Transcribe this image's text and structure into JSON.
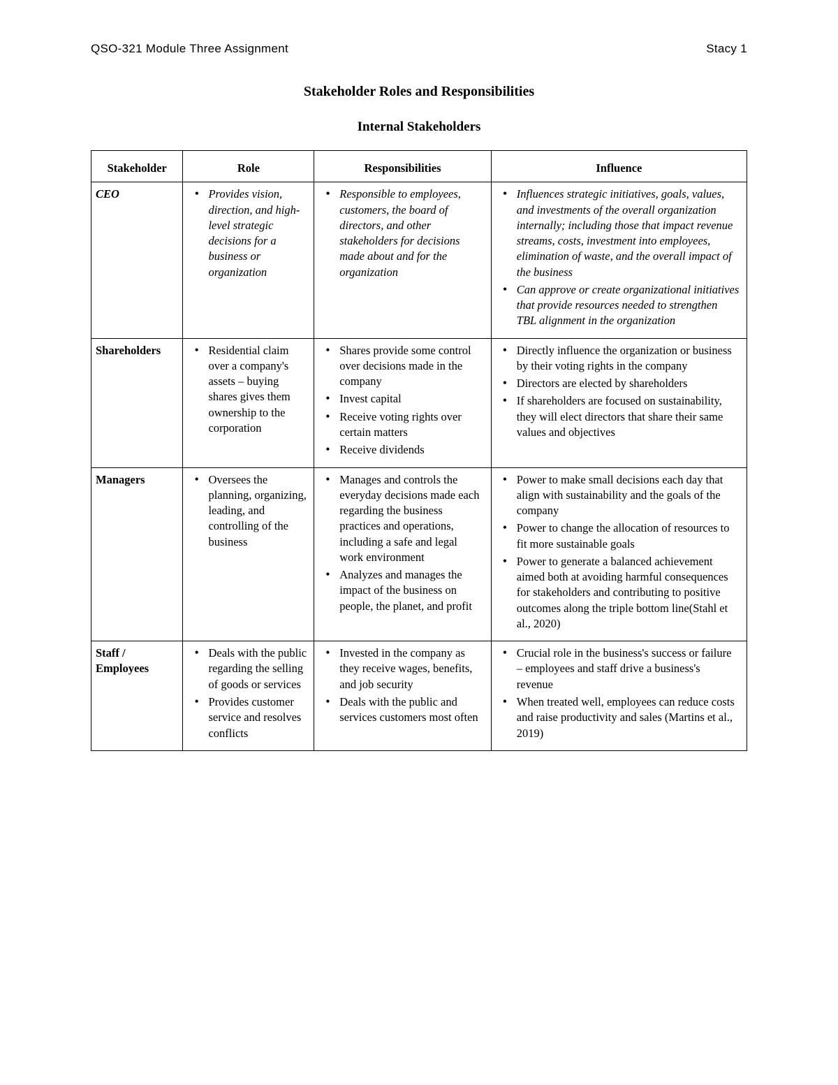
{
  "header": {
    "left": "QSO-321 Module Three Assignment",
    "right": "Stacy 1"
  },
  "title": "Stakeholder Roles and Responsibilities",
  "subtitle": "Internal Stakeholders",
  "columns": [
    "Stakeholder",
    "Role",
    "Responsibilities",
    "Influence"
  ],
  "column_widths_pct": [
    14,
    20,
    27,
    39
  ],
  "colors": {
    "text": "#000000",
    "background": "#ffffff",
    "border": "#000000"
  },
  "typography": {
    "header_font": "Verdana",
    "body_font": "Georgia",
    "title_fontsize_pt": 15,
    "subtitle_fontsize_pt": 14,
    "cell_fontsize_pt": 12,
    "header_fontsize_pt": 13
  },
  "rows": [
    {
      "stakeholder": "CEO",
      "italic": true,
      "role": [
        "Provides vision, direction, and high-level strategic decisions for a business or organization"
      ],
      "responsibilities": [
        "Responsible to employees, customers, the board of directors, and other stakeholders for decisions made about and for the organization"
      ],
      "influence": [
        "Influences strategic initiatives, goals, values, and investments of the overall organization internally; including those that impact revenue streams, costs, investment into employees, elimination of waste, and the overall impact of the business",
        "Can approve or create organizational initiatives that provide resources needed to strengthen TBL alignment in the organization"
      ]
    },
    {
      "stakeholder": "Shareholders",
      "italic": false,
      "role": [
        "Residential claim over a company's assets – buying shares gives them ownership to the corporation"
      ],
      "responsibilities": [
        "Shares provide some control over decisions made in the company",
        "Invest capital",
        "Receive voting rights over certain matters",
        "Receive dividends"
      ],
      "influence": [
        "Directly influence the organization or business by their voting rights in the company",
        "Directors are elected by shareholders",
        "If shareholders are focused on sustainability, they will elect directors that share their same values and objectives"
      ]
    },
    {
      "stakeholder": "Managers",
      "italic": false,
      "role": [
        "Oversees the planning, organizing, leading, and controlling of the business"
      ],
      "responsibilities": [
        "Manages and controls the everyday decisions made each regarding the business practices and operations, including a safe and legal work environment",
        "Analyzes and manages the impact of the business on people, the planet, and profit"
      ],
      "influence": [
        "Power to make small decisions each day that align with sustainability and the goals of the company",
        "Power to change the allocation of resources to fit more sustainable goals",
        "Power to generate a balanced achievement aimed both at avoiding harmful consequences for stakeholders and contributing to positive outcomes along the triple bottom line(Stahl et al., 2020)"
      ]
    },
    {
      "stakeholder": "Staff / Employees",
      "italic": false,
      "role": [
        "Deals with the public regarding the selling of goods or services",
        "Provides customer service and resolves conflicts"
      ],
      "responsibilities": [
        "Invested in the company as they receive wages, benefits, and job security",
        "Deals with the public and services customers most often"
      ],
      "influence": [
        "Crucial role in the business's success or failure – employees and staff drive a business's revenue",
        "When treated well, employees can reduce costs and raise productivity and sales (Martins et al., 2019)"
      ]
    }
  ]
}
